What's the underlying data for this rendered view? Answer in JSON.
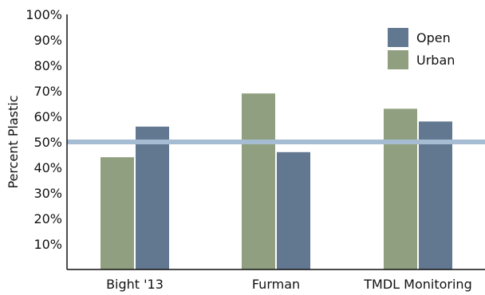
{
  "colors": {
    "open": "#627890",
    "urban": "#8f9f7f",
    "reference_line": "#a6bcd2",
    "axis": "#111111"
  },
  "chart_data": {
    "type": "bar",
    "title": "",
    "xlabel": "",
    "ylabel": "Percent Plastic",
    "ylim": [
      0,
      100
    ],
    "yticks": [
      10,
      20,
      30,
      40,
      50,
      60,
      70,
      80,
      90,
      100
    ],
    "ytick_labels": [
      "10%",
      "20%",
      "30%",
      "40%",
      "50%",
      "60%",
      "70%",
      "80%",
      "90%",
      "100%"
    ],
    "categories": [
      "Bight '13",
      "Furman",
      "TMDL Monitoring"
    ],
    "series": [
      {
        "name": "Urban",
        "values": [
          44,
          69,
          63
        ]
      },
      {
        "name": "Open",
        "values": [
          56,
          46,
          58
        ]
      }
    ],
    "legend_order": [
      "Open",
      "Urban"
    ],
    "legend_position": "top-right",
    "reference_line": 50,
    "grid": false
  }
}
